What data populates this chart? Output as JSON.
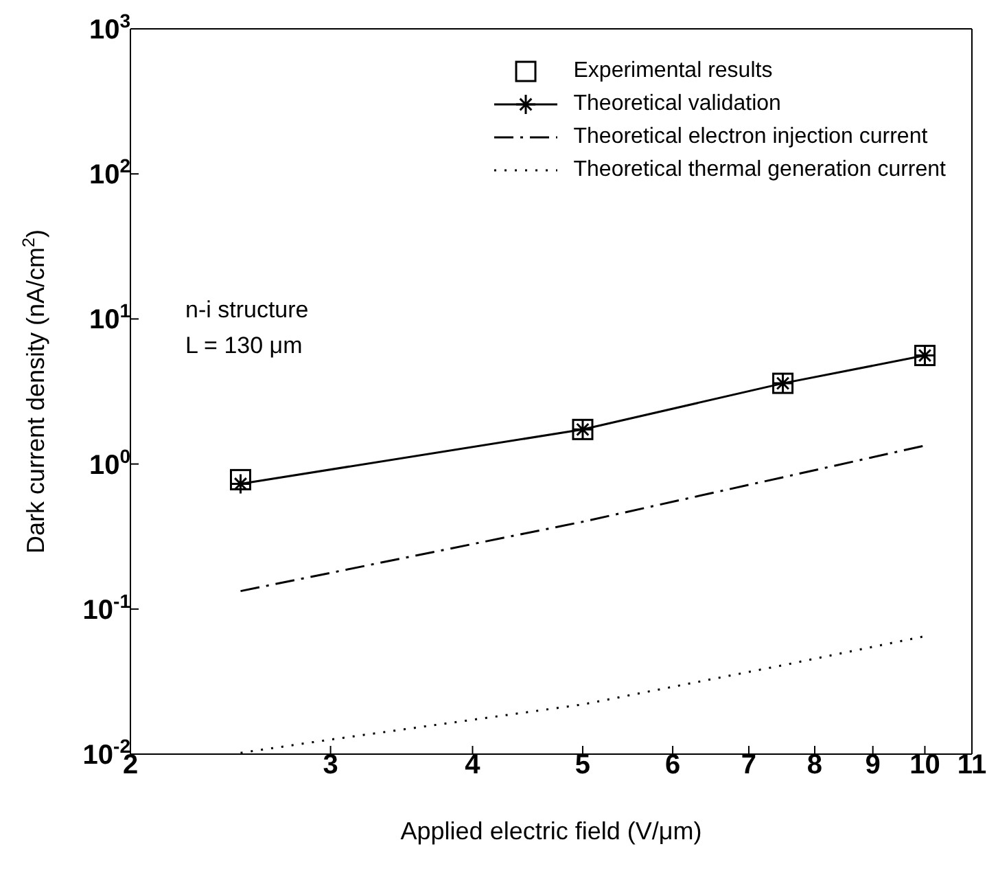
{
  "chart_data": {
    "type": "line",
    "xlabel": "Applied electric field (V/μm)",
    "ylabel": "Dark current density (nA/cm$^{2}$)",
    "log": "xy",
    "xlim": [
      2,
      11
    ],
    "xticks": [
      2,
      3,
      4,
      5,
      6,
      7,
      8,
      9,
      10,
      11
    ],
    "ylim": [
      0.01,
      1000
    ],
    "yticks": [
      {
        "value": 0.01,
        "label": "10$^{-2}$"
      },
      {
        "value": 0.1,
        "label": "10$^{-1}$"
      },
      {
        "value": 1,
        "label": "10$^{0}$"
      },
      {
        "value": 10,
        "label": "10$^{1}$"
      },
      {
        "value": 100,
        "label": "10$^{2}$"
      },
      {
        "value": 1000,
        "label": "10$^{3}$"
      }
    ],
    "grid": false,
    "legend": "top right",
    "annotations": [
      "n-i structure\nL = 130 μm"
    ],
    "series": [
      {
        "name": "Experimental results",
        "type": "scatter",
        "marker": "square",
        "color": "#000000",
        "x": [
          2.5,
          5,
          7.5,
          10
        ],
        "values": [
          0.78,
          1.73,
          3.6,
          5.6
        ]
      },
      {
        "name": "Theoretical validation",
        "marker": "cross",
        "line_style": "solid",
        "color": "#000000",
        "x": [
          2.5,
          5,
          7.5,
          10
        ],
        "values": [
          0.73,
          1.73,
          3.6,
          5.6
        ]
      },
      {
        "name": "Theoretical electron injection current",
        "marker": "none",
        "line_style": "dashed",
        "color": "#000000",
        "x": [
          2.5,
          5,
          7.5,
          10
        ],
        "values": [
          0.133,
          0.4,
          0.81,
          1.34
        ]
      },
      {
        "name": "Theoretical thermal generation current",
        "marker": "none",
        "line_style": "dotted",
        "color": "#000000",
        "x": [
          2.5,
          3,
          5,
          7.5,
          10
        ],
        "values": [
          0.0102,
          0.0126,
          0.022,
          0.041,
          0.065
        ]
      }
    ]
  }
}
